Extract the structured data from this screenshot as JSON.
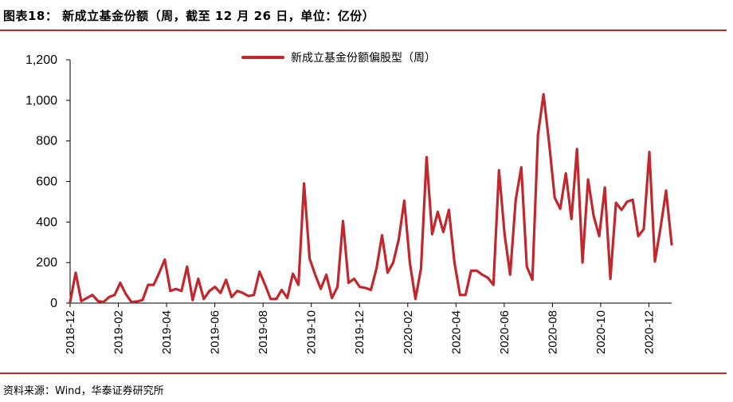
{
  "figure": {
    "title": "图表18：  新成立基金份额（周，截至 12 月 26 日，单位：亿份）",
    "source": "资料来源：Wind，华泰证券研究所"
  },
  "colors": {
    "series": "#c0282d",
    "rule": "#c0282d"
  },
  "chart_data": {
    "type": "line",
    "title": "",
    "xlabel": "",
    "ylabel": "",
    "ylim": [
      0,
      1200
    ],
    "yticks": [
      "0",
      "200",
      "400",
      "600",
      "800",
      "1,000",
      "1,200"
    ],
    "ytick_values": [
      0,
      200,
      400,
      600,
      800,
      1000,
      1200
    ],
    "xticks": [
      "2018-12",
      "2019-02",
      "2019-04",
      "2019-06",
      "2019-08",
      "2019-10",
      "2019-12",
      "2020-02",
      "2020-04",
      "2020-06",
      "2020-08",
      "2020-10",
      "2020-12"
    ],
    "legend": "top-center",
    "grid": false,
    "series": [
      {
        "name": "新成立基金份额偏股型（周）",
        "values": [
          5,
          150,
          10,
          25,
          40,
          10,
          5,
          30,
          40,
          100,
          45,
          5,
          8,
          15,
          90,
          90,
          150,
          215,
          60,
          70,
          60,
          180,
          15,
          120,
          20,
          60,
          80,
          50,
          115,
          30,
          60,
          50,
          35,
          40,
          155,
          90,
          20,
          20,
          65,
          25,
          145,
          90,
          590,
          220,
          140,
          70,
          140,
          25,
          80,
          405,
          100,
          120,
          80,
          75,
          65,
          170,
          335,
          150,
          200,
          315,
          505,
          200,
          20,
          170,
          720,
          340,
          450,
          350,
          460,
          200,
          40,
          40,
          160,
          160,
          140,
          125,
          90,
          655,
          340,
          140,
          510,
          670,
          180,
          115,
          830,
          1030,
          790,
          520,
          465,
          640,
          415,
          760,
          200,
          610,
          430,
          330,
          570,
          120,
          495,
          460,
          500,
          510,
          330,
          365,
          745,
          205,
          370,
          555,
          290
        ]
      }
    ]
  }
}
